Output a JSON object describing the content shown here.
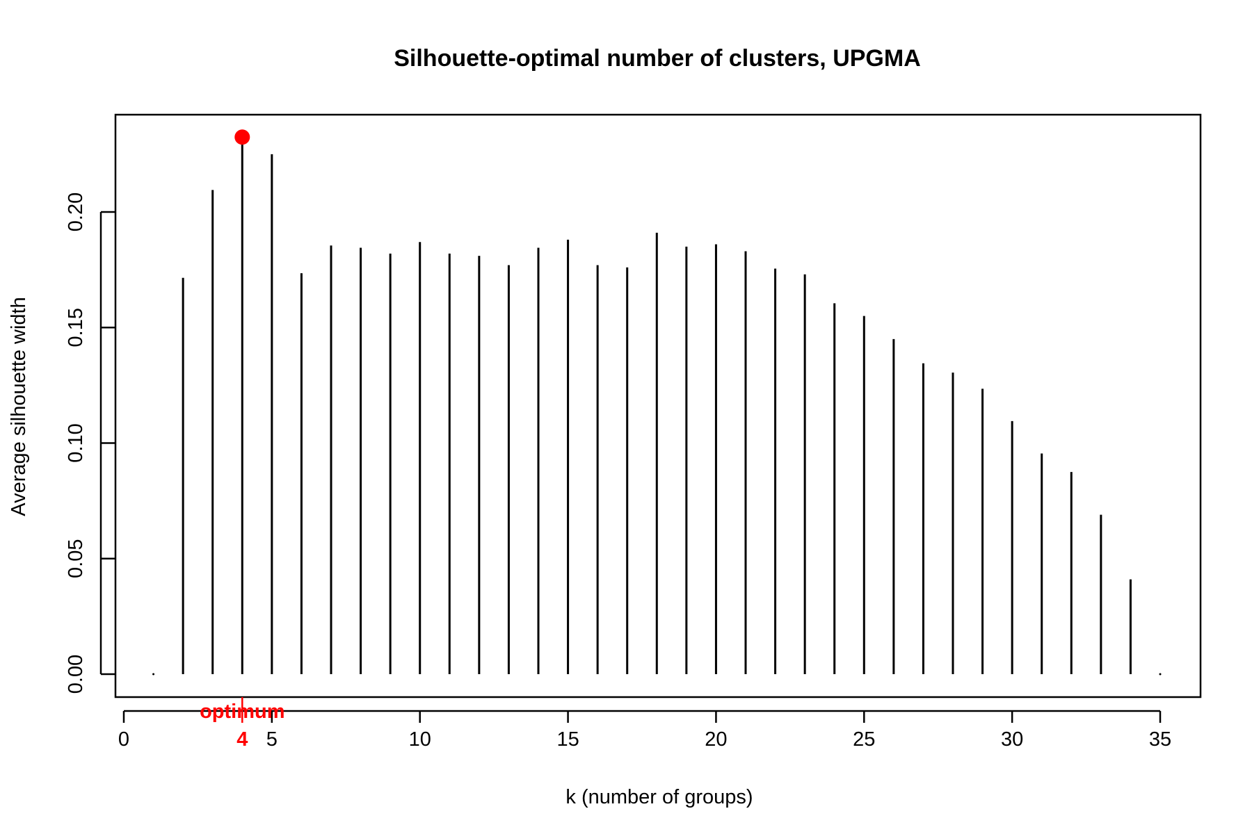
{
  "chart_data": {
    "type": "bar",
    "style": "spikes",
    "title": "Silhouette-optimal number of clusters, UPGMA",
    "xlabel": "k (number of groups)",
    "ylabel": "Average silhouette width",
    "xlim": [
      0,
      35
    ],
    "ylim": [
      0,
      0.23
    ],
    "xticks": [
      0,
      5,
      10,
      15,
      20,
      25,
      30,
      35
    ],
    "yticks": [
      0.0,
      0.05,
      0.1,
      0.15,
      0.2
    ],
    "yticklabels": [
      "0.00",
      "0.05",
      "0.10",
      "0.15",
      "0.20"
    ],
    "x": [
      1,
      2,
      3,
      4,
      5,
      6,
      7,
      8,
      9,
      10,
      11,
      12,
      13,
      14,
      15,
      16,
      17,
      18,
      19,
      20,
      21,
      22,
      23,
      24,
      25,
      26,
      27,
      28,
      29,
      30,
      31,
      32,
      33,
      34,
      35
    ],
    "values": [
      0,
      0.1715,
      0.2095,
      0.2315,
      0.225,
      0.1735,
      0.1855,
      0.1845,
      0.182,
      0.187,
      0.182,
      0.181,
      0.177,
      0.1845,
      0.188,
      0.177,
      0.176,
      0.191,
      0.185,
      0.186,
      0.183,
      0.1755,
      0.173,
      0.1605,
      0.155,
      0.145,
      0.1345,
      0.1305,
      0.1235,
      0.1095,
      0.0955,
      0.0875,
      0.069,
      0.041,
      0
    ],
    "optimum": {
      "k": 4,
      "k_label": "4",
      "value": 0.2315,
      "label": "optimum",
      "color": "#ff0000"
    },
    "grid": false,
    "line_color": "#000000"
  }
}
